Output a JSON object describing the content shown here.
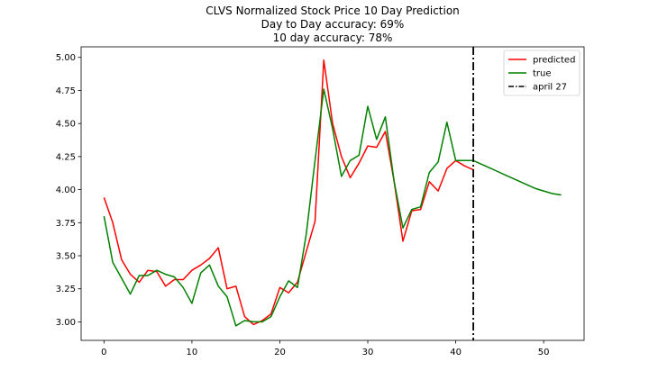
{
  "chart_data": {
    "type": "line",
    "title": [
      "CLVS Normalized Stock Price 10 Day Prediction",
      "Day to Day accuracy: 69%",
      "10 day accuracy: 78%"
    ],
    "xlabel": "",
    "ylabel": "",
    "xlim": [
      -2.6,
      54.6
    ],
    "ylim": [
      2.86,
      5.08
    ],
    "xticks": [
      0,
      10,
      20,
      30,
      40,
      50
    ],
    "yticks": [
      3.0,
      3.25,
      3.5,
      3.75,
      4.0,
      4.25,
      4.5,
      4.75,
      5.0
    ],
    "ytick_labels": [
      "3.00",
      "3.25",
      "3.50",
      "3.75",
      "4.00",
      "4.25",
      "4.50",
      "4.75",
      "5.00"
    ],
    "grid": false,
    "legend_position": "top-right",
    "series": [
      {
        "name": "predicted",
        "color": "#ff0000",
        "style": "solid",
        "x": [
          0,
          1,
          2,
          3,
          4,
          5,
          6,
          7,
          8,
          9,
          10,
          11,
          12,
          13,
          14,
          15,
          16,
          17,
          18,
          19,
          20,
          21,
          22,
          23,
          24,
          25,
          26,
          27,
          28,
          29,
          30,
          31,
          32,
          33,
          34,
          35,
          36,
          37,
          38,
          39,
          40,
          41,
          42
        ],
        "y": [
          3.94,
          3.75,
          3.47,
          3.36,
          3.3,
          3.39,
          3.38,
          3.27,
          3.32,
          3.32,
          3.39,
          3.43,
          3.48,
          3.56,
          3.25,
          3.27,
          3.04,
          2.98,
          3.01,
          3.06,
          3.26,
          3.22,
          3.3,
          3.53,
          3.76,
          4.98,
          4.5,
          4.25,
          4.09,
          4.2,
          4.33,
          4.32,
          4.44,
          4.06,
          3.61,
          3.84,
          3.85,
          4.06,
          3.99,
          4.16,
          4.22,
          4.18,
          4.15
        ]
      },
      {
        "name": "true",
        "color": "#008000",
        "style": "solid",
        "x": [
          0,
          1,
          2,
          3,
          4,
          5,
          6,
          7,
          8,
          9,
          10,
          11,
          12,
          13,
          14,
          15,
          16,
          17,
          18,
          19,
          20,
          21,
          22,
          23,
          24,
          25,
          26,
          27,
          28,
          29,
          30,
          31,
          32,
          33,
          34,
          35,
          36,
          37,
          38,
          39,
          40,
          41,
          42,
          43,
          44,
          45,
          46,
          47,
          48,
          49,
          50,
          51,
          52
        ],
        "y": [
          3.8,
          3.45,
          3.33,
          3.21,
          3.35,
          3.35,
          3.39,
          3.36,
          3.34,
          3.26,
          3.14,
          3.37,
          3.43,
          3.27,
          3.19,
          2.97,
          3.01,
          3.0,
          3.0,
          3.04,
          3.19,
          3.31,
          3.26,
          3.66,
          4.22,
          4.76,
          4.46,
          4.1,
          4.22,
          4.26,
          4.63,
          4.38,
          4.55,
          4.06,
          3.71,
          3.85,
          3.87,
          4.13,
          4.21,
          4.51,
          4.22,
          4.22,
          4.22,
          4.19,
          4.16,
          4.13,
          4.1,
          4.07,
          4.04,
          4.01,
          3.99,
          3.97,
          3.96
        ]
      }
    ],
    "vline": {
      "name": "april 27",
      "x": 42,
      "color": "#000000",
      "style": "dashdot"
    }
  }
}
